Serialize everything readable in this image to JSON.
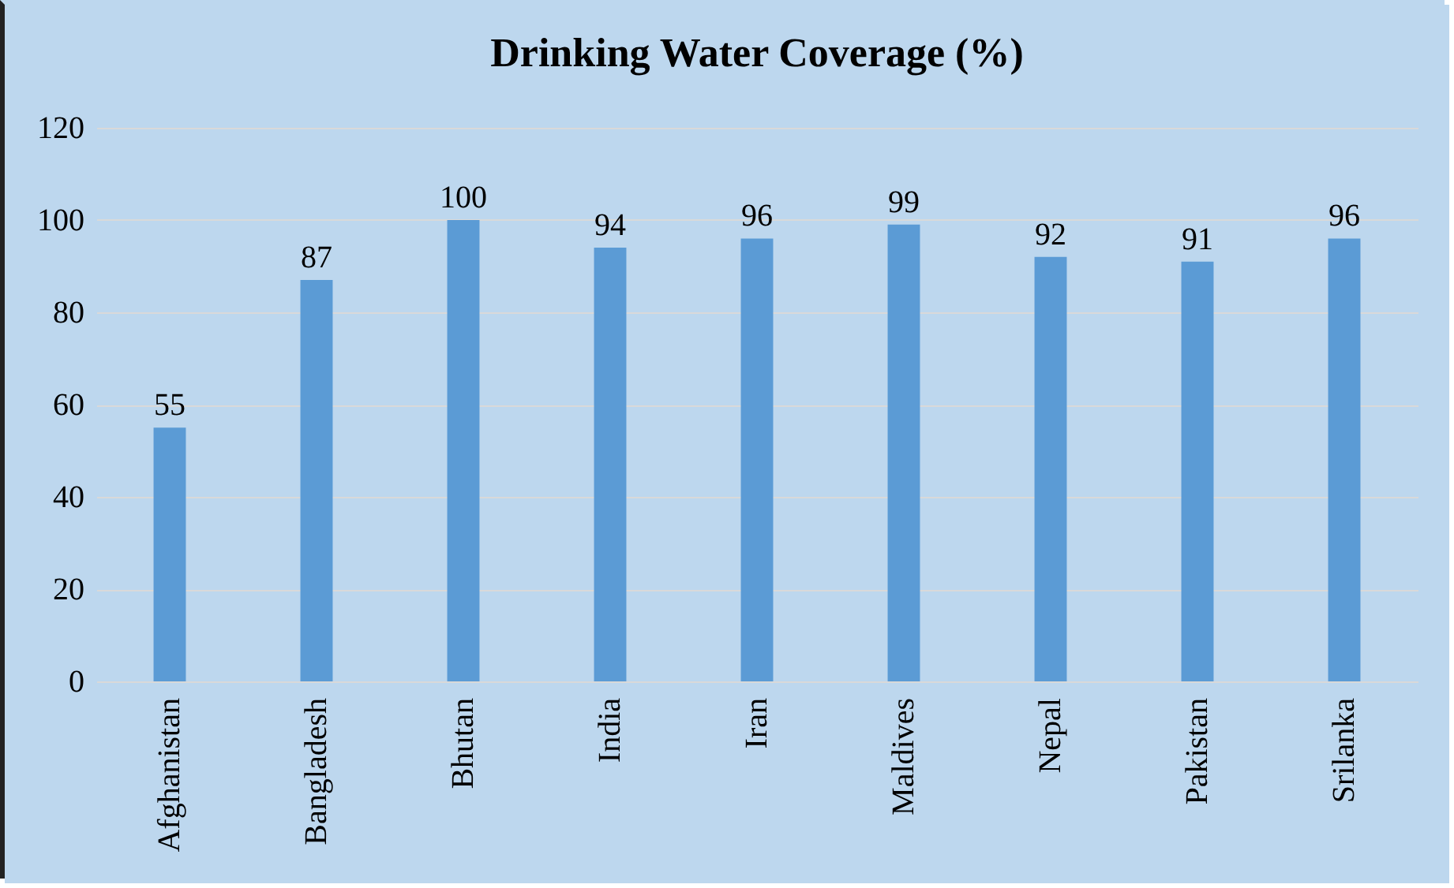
{
  "chart_data": {
    "type": "bar",
    "title": "Drinking Water Coverage (%)",
    "categories": [
      "Afghanistan",
      "Bangladesh",
      "Bhutan",
      "India",
      "Iran",
      "Maldives",
      "Nepal",
      "Pakistan",
      "Srilanka"
    ],
    "values": [
      55,
      87,
      100,
      94,
      96,
      99,
      92,
      91,
      96
    ],
    "color": "#5b9bd5",
    "ylim": [
      0,
      120
    ],
    "yticks": [
      0,
      20,
      40,
      60,
      80,
      100,
      120
    ],
    "grid": "y",
    "data_labels": true
  }
}
